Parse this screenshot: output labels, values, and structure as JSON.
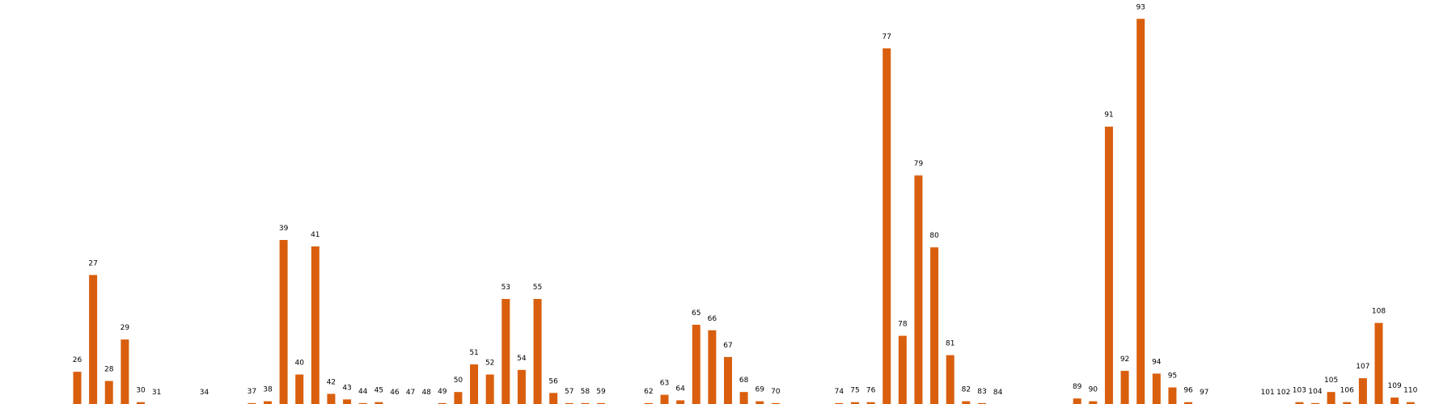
{
  "chart_data": {
    "type": "bar",
    "color": "#d95f0e",
    "grid": false,
    "axes_visible": false,
    "x_range": [
      22,
      112
    ],
    "ylim": [
      0,
      42
    ],
    "categories": [
      "26",
      "27",
      "28",
      "29",
      "30",
      "31",
      "34",
      "37",
      "38",
      "39",
      "40",
      "41",
      "42",
      "43",
      "44",
      "45",
      "46",
      "47",
      "48",
      "49",
      "50",
      "51",
      "52",
      "53",
      "54",
      "55",
      "56",
      "57",
      "58",
      "59",
      "62",
      "63",
      "64",
      "65",
      "66",
      "67",
      "68",
      "69",
      "70",
      "74",
      "75",
      "76",
      "77",
      "78",
      "79",
      "80",
      "81",
      "82",
      "83",
      "84",
      "89",
      "90",
      "91",
      "92",
      "93",
      "94",
      "95",
      "96",
      "97",
      "101",
      "102",
      "103",
      "104",
      "105",
      "106",
      "107",
      "108",
      "109",
      "110"
    ],
    "x": [
      26,
      27,
      28,
      29,
      30,
      31,
      34,
      37,
      38,
      39,
      40,
      41,
      42,
      43,
      44,
      45,
      46,
      47,
      48,
      49,
      50,
      51,
      52,
      53,
      54,
      55,
      56,
      57,
      58,
      59,
      62,
      63,
      64,
      65,
      66,
      67,
      68,
      69,
      70,
      74,
      75,
      76,
      77,
      78,
      79,
      80,
      81,
      82,
      83,
      84,
      89,
      90,
      91,
      92,
      93,
      94,
      95,
      96,
      97,
      101,
      102,
      103,
      104,
      105,
      106,
      107,
      108,
      109,
      110
    ],
    "values": [
      3.5,
      14.0,
      2.5,
      7.0,
      0.2,
      0,
      0,
      0.1,
      0.3,
      17.8,
      3.2,
      17.1,
      1.1,
      0.5,
      0.1,
      0.2,
      0,
      0,
      0,
      0.1,
      1.3,
      4.3,
      3.2,
      11.4,
      3.7,
      11.4,
      1.2,
      0.1,
      0.1,
      0.1,
      0.1,
      1.0,
      0.4,
      8.6,
      8.0,
      5.1,
      1.3,
      0.3,
      0.1,
      0.1,
      0.2,
      0.2,
      38.6,
      7.4,
      24.8,
      17.0,
      5.3,
      0.3,
      0.1,
      0,
      0.6,
      0.3,
      30.1,
      3.6,
      41.8,
      3.3,
      1.8,
      0.2,
      0,
      0,
      0,
      0.2,
      0.1,
      1.3,
      0.2,
      2.8,
      8.8,
      0.7,
      0.2
    ]
  }
}
